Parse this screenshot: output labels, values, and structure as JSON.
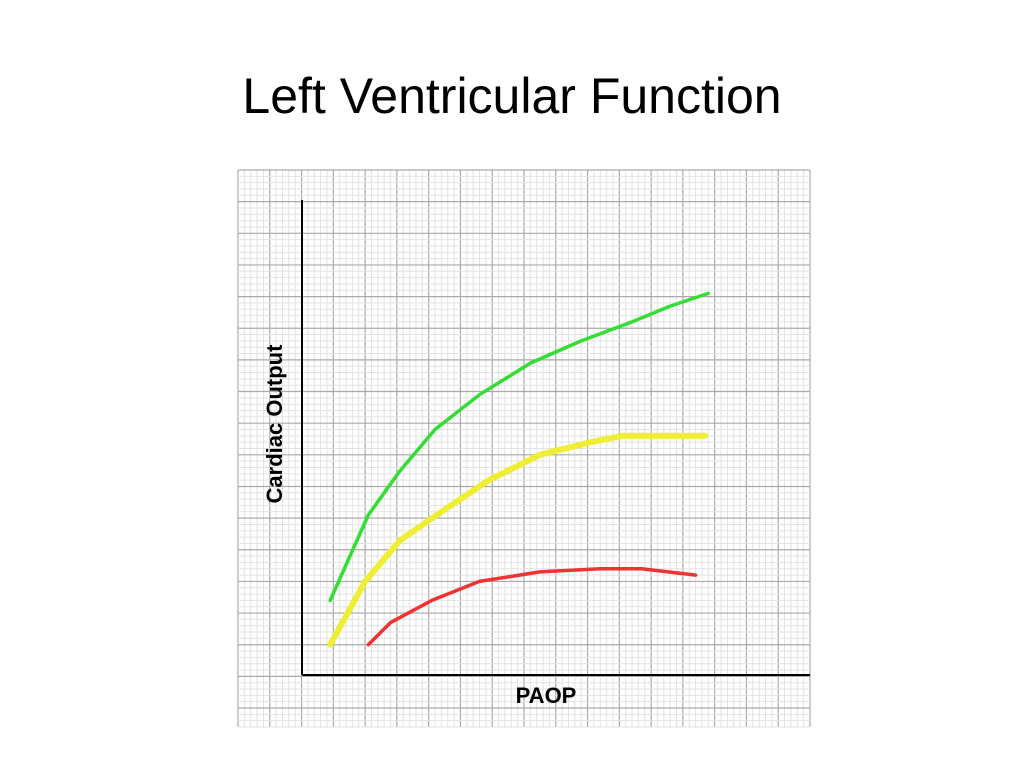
{
  "chart_data": {
    "type": "line",
    "title": "Left Ventricular Function",
    "x_label": "PAOP",
    "y_label": "Cardiac Output",
    "xlim": [
      -2,
      16
    ],
    "ylim": [
      -1.6,
      16
    ],
    "grid": true,
    "series": [
      {
        "color": "#33dd33",
        "x": [
          0.9,
          2.1,
          3.1,
          4.2,
          5.6,
          7.2,
          8.8,
          10.4,
          11.6,
          12.8
        ],
        "values": [
          2.4,
          5.1,
          6.5,
          7.8,
          8.9,
          9.9,
          10.6,
          11.2,
          11.7,
          12.1
        ]
      },
      {
        "color": "#eeee33",
        "x": [
          0.9,
          2.0,
          3.1,
          4.4,
          5.9,
          7.5,
          9.1,
          10.1,
          12.7
        ],
        "values": [
          1.0,
          3.0,
          4.3,
          5.2,
          6.2,
          7.0,
          7.4,
          7.6,
          7.6
        ]
      },
      {
        "color": "#ee3333",
        "x": [
          2.1,
          2.8,
          4.1,
          5.6,
          7.5,
          9.4,
          10.7,
          12.4
        ],
        "values": [
          1.0,
          1.7,
          2.4,
          3.0,
          3.3,
          3.4,
          3.4,
          3.2
        ]
      }
    ]
  }
}
